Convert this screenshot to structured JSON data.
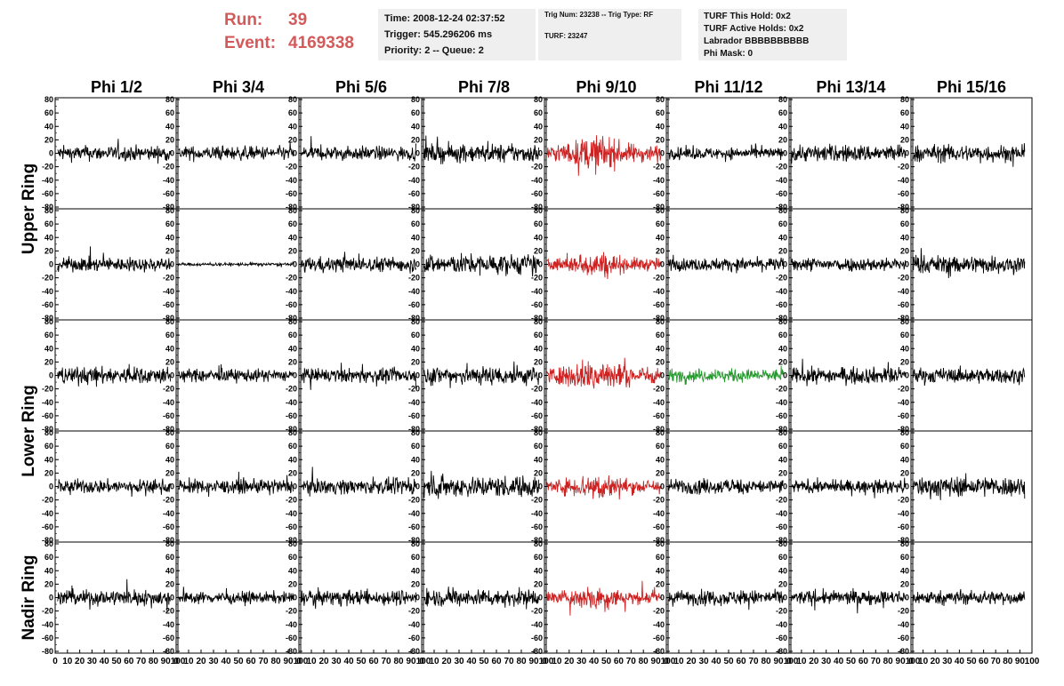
{
  "header": {
    "run_label": "Run:",
    "run_value": "39",
    "event_label": "Event:",
    "event_value": "4169338",
    "time": "Time: 2008-12-24 02:37:52",
    "trigger": "Trigger: 545.296206 ms",
    "priority": "Priority: 2 -- Queue: 2",
    "trig_num": "Trig Num: 23238 -- Trig Type: RF",
    "turf": "TURF: 23247",
    "turf_this_hold": "TURF This Hold: 0x2",
    "turf_active_holds": "TURF Active Holds: 0x2",
    "labrador": "Labrador BBBBBBBBBB",
    "phi_mask": "Phi Mask: 0"
  },
  "chart_data": {
    "type": "line",
    "title": "",
    "columns": [
      "Phi 1/2",
      "Phi 3/4",
      "Phi 5/6",
      "Phi 7/8",
      "Phi 9/10",
      "Phi 11/12",
      "Phi 13/14",
      "Phi 15/16"
    ],
    "ring_labels": [
      {
        "text": "Upper Ring",
        "rows": [
          0,
          1
        ]
      },
      {
        "text": "Lower Ring",
        "rows": [
          2,
          3
        ]
      },
      {
        "text": "Nadir Ring",
        "rows": [
          4
        ]
      }
    ],
    "xlim": [
      0,
      100
    ],
    "ylim": [
      -80,
      80
    ],
    "x_ticks": [
      0,
      10,
      20,
      30,
      40,
      50,
      60,
      70,
      80,
      90,
      100
    ],
    "x_tick_labels": [
      "0",
      "10",
      "20",
      "30",
      "40",
      "50",
      "60",
      "70",
      "80",
      "90",
      "100"
    ],
    "y_ticks": [
      80,
      60,
      40,
      20,
      0,
      -20,
      -40,
      -60,
      -80
    ],
    "y_tick_labels": [
      "80",
      "60",
      "40",
      "20",
      "0",
      "-20",
      "-40",
      "-60",
      "-80"
    ],
    "colors": {
      "normal": "#000000",
      "triggered": "#cc2222",
      "l1": "#22992a"
    },
    "trace_color_codes": [
      [
        "normal",
        "normal",
        "normal",
        "normal",
        "triggered",
        "normal",
        "normal",
        "normal"
      ],
      [
        "normal",
        "normal",
        "normal",
        "normal",
        "triggered",
        "normal",
        "normal",
        "normal"
      ],
      [
        "normal",
        "normal",
        "normal",
        "normal",
        "triggered",
        "l1",
        "normal",
        "normal"
      ],
      [
        "normal",
        "normal",
        "normal",
        "normal",
        "triggered",
        "normal",
        "normal",
        "normal"
      ],
      [
        "normal",
        "normal",
        "normal",
        "normal",
        "triggered",
        "normal",
        "normal",
        "normal"
      ]
    ],
    "trace_amplitude": [
      [
        14,
        13,
        13,
        17,
        30,
        11,
        16,
        16
      ],
      [
        13,
        3,
        14,
        19,
        22,
        12,
        13,
        17
      ],
      [
        16,
        12,
        13,
        18,
        30,
        12,
        15,
        14
      ],
      [
        13,
        13,
        14,
        20,
        24,
        14,
        12,
        19
      ],
      [
        15,
        11,
        14,
        16,
        22,
        14,
        13,
        13
      ]
    ]
  }
}
